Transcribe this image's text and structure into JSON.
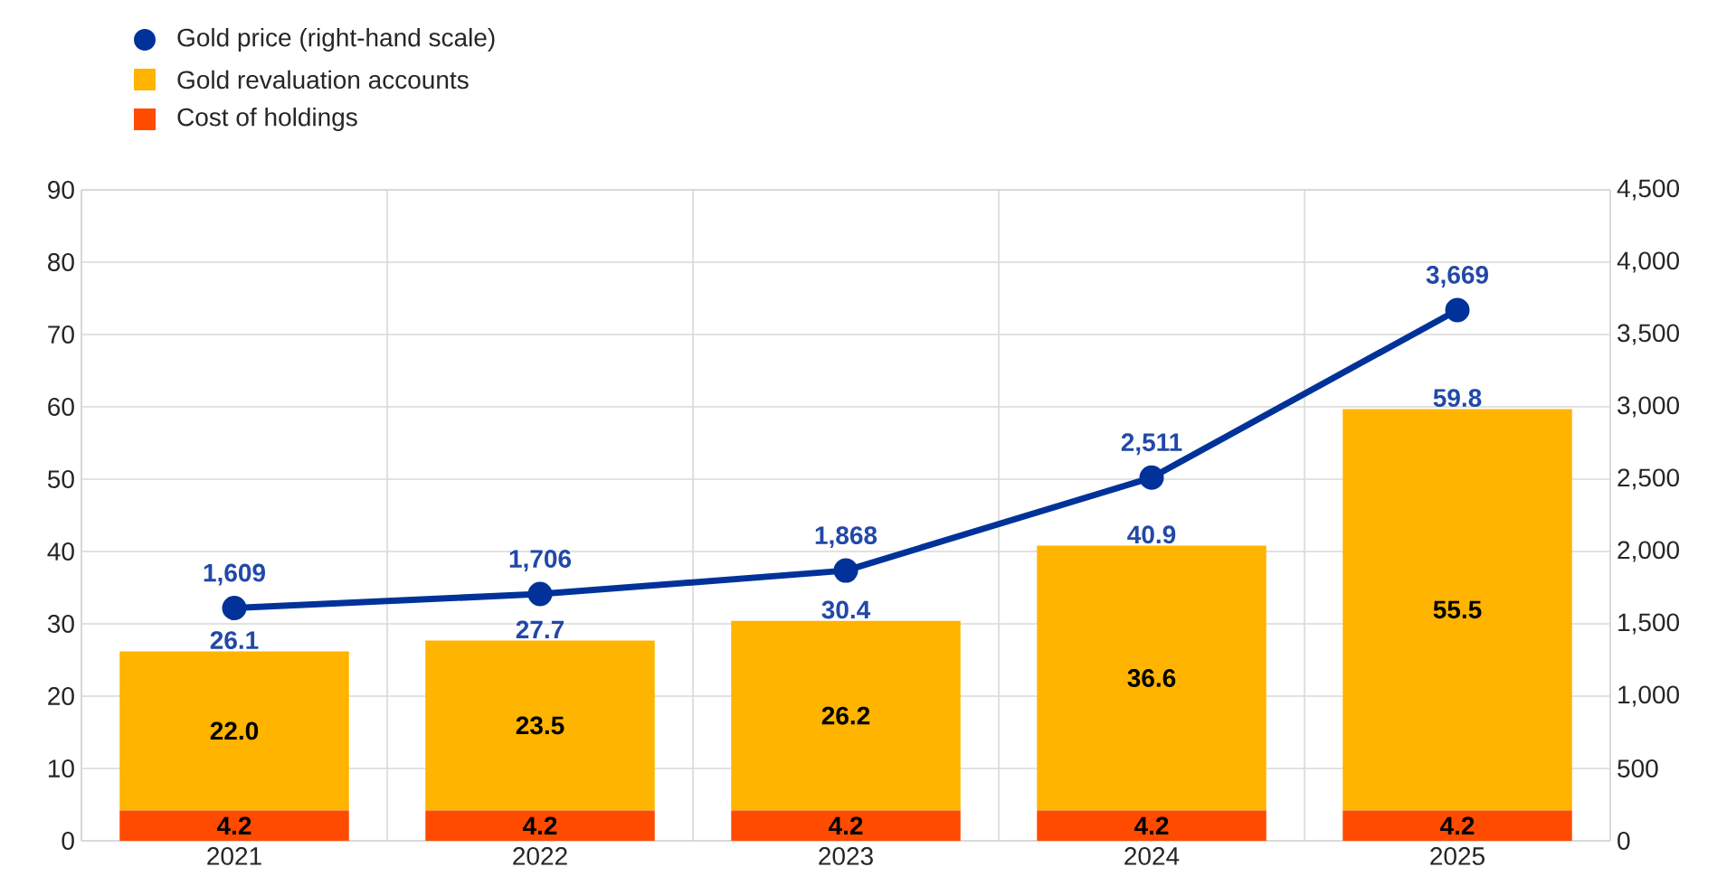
{
  "chart_data": {
    "type": "bar",
    "stacked": true,
    "grid": true,
    "legend": "top left",
    "categories": [
      "2021",
      "2022",
      "2023",
      "2024",
      "2025"
    ],
    "series": [
      {
        "name": "Cost of holdings",
        "color": "#ff4b00",
        "values": [
          4.2,
          4.2,
          4.2,
          4.2,
          4.2
        ],
        "value_labels": [
          "4.2",
          "4.2",
          "4.2",
          "4.2",
          "4.2"
        ]
      },
      {
        "name": "Gold revaluation accounts",
        "color": "#ffb400",
        "values": [
          22.0,
          23.5,
          26.2,
          36.6,
          55.5
        ],
        "value_labels": [
          "22.0",
          "23.5",
          "26.2",
          "36.6",
          "55.5"
        ]
      },
      {
        "name": "Gold price (right-hand scale)",
        "type": "line",
        "axis": "y2",
        "marker": "circle",
        "color": "#003299",
        "values": [
          1609,
          1706,
          1868,
          2511,
          3669
        ],
        "value_labels": [
          "1,609",
          "1,706",
          "1,868",
          "2,511",
          "3,669"
        ]
      }
    ],
    "totals": [
      "26.1",
      "27.7",
      "30.4",
      "40.9",
      "59.8"
    ],
    "ylim": [
      0,
      90
    ],
    "yticks": [
      0,
      10,
      20,
      30,
      40,
      50,
      60,
      70,
      80,
      90
    ],
    "y2lim": [
      0,
      4500
    ],
    "y2ticks": [
      0,
      500,
      {
        "value": 1000,
        "label": "1,000"
      },
      {
        "value": 1500,
        "label": "1,500"
      },
      {
        "value": 2000,
        "label": "2,000"
      },
      {
        "value": 2500,
        "label": "2,500"
      },
      {
        "value": 3000,
        "label": "3,000"
      },
      {
        "value": 3500,
        "label": "3,500"
      },
      {
        "value": 4000,
        "label": "4,000"
      },
      {
        "value": 4500,
        "label": "4,500"
      }
    ]
  }
}
